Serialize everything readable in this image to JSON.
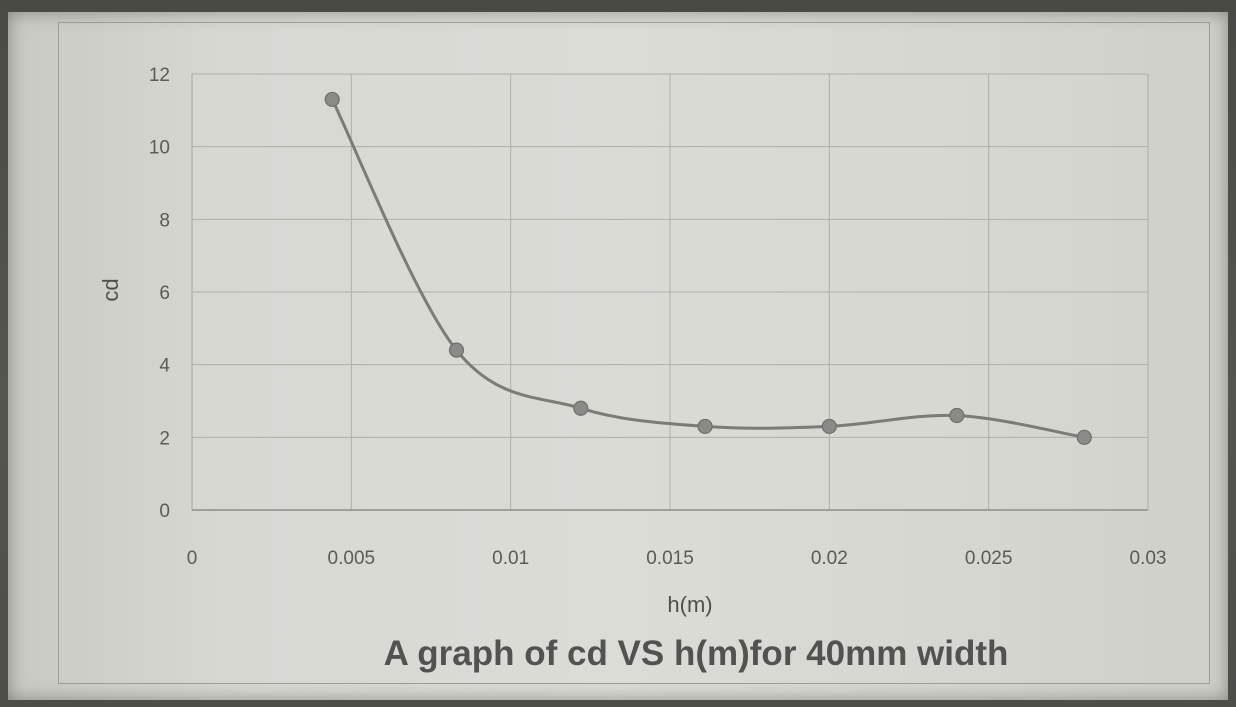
{
  "chart_data": {
    "type": "scatter",
    "title": "A graph of cd VS h(m)for 40mm width",
    "xlabel": "h(m)",
    "ylabel": "cd",
    "xlim": [
      0,
      0.03
    ],
    "ylim": [
      0,
      12
    ],
    "x_ticks": [
      "0",
      "0.005",
      "0.01",
      "0.015",
      "0.02",
      "0.025",
      "0.03"
    ],
    "y_ticks": [
      "0",
      "2",
      "4",
      "6",
      "8",
      "10",
      "12"
    ],
    "grid": true,
    "smooth_line": true,
    "marker_color": "#8a8a86",
    "line_color": "#7b7b77",
    "series": [
      {
        "x": [
          0.0044,
          0.0083,
          0.0122,
          0.0161,
          0.02,
          0.024,
          0.028
        ],
        "y": [
          11.3,
          4.4,
          2.8,
          2.3,
          2.3,
          2.6,
          2.0
        ]
      }
    ]
  }
}
